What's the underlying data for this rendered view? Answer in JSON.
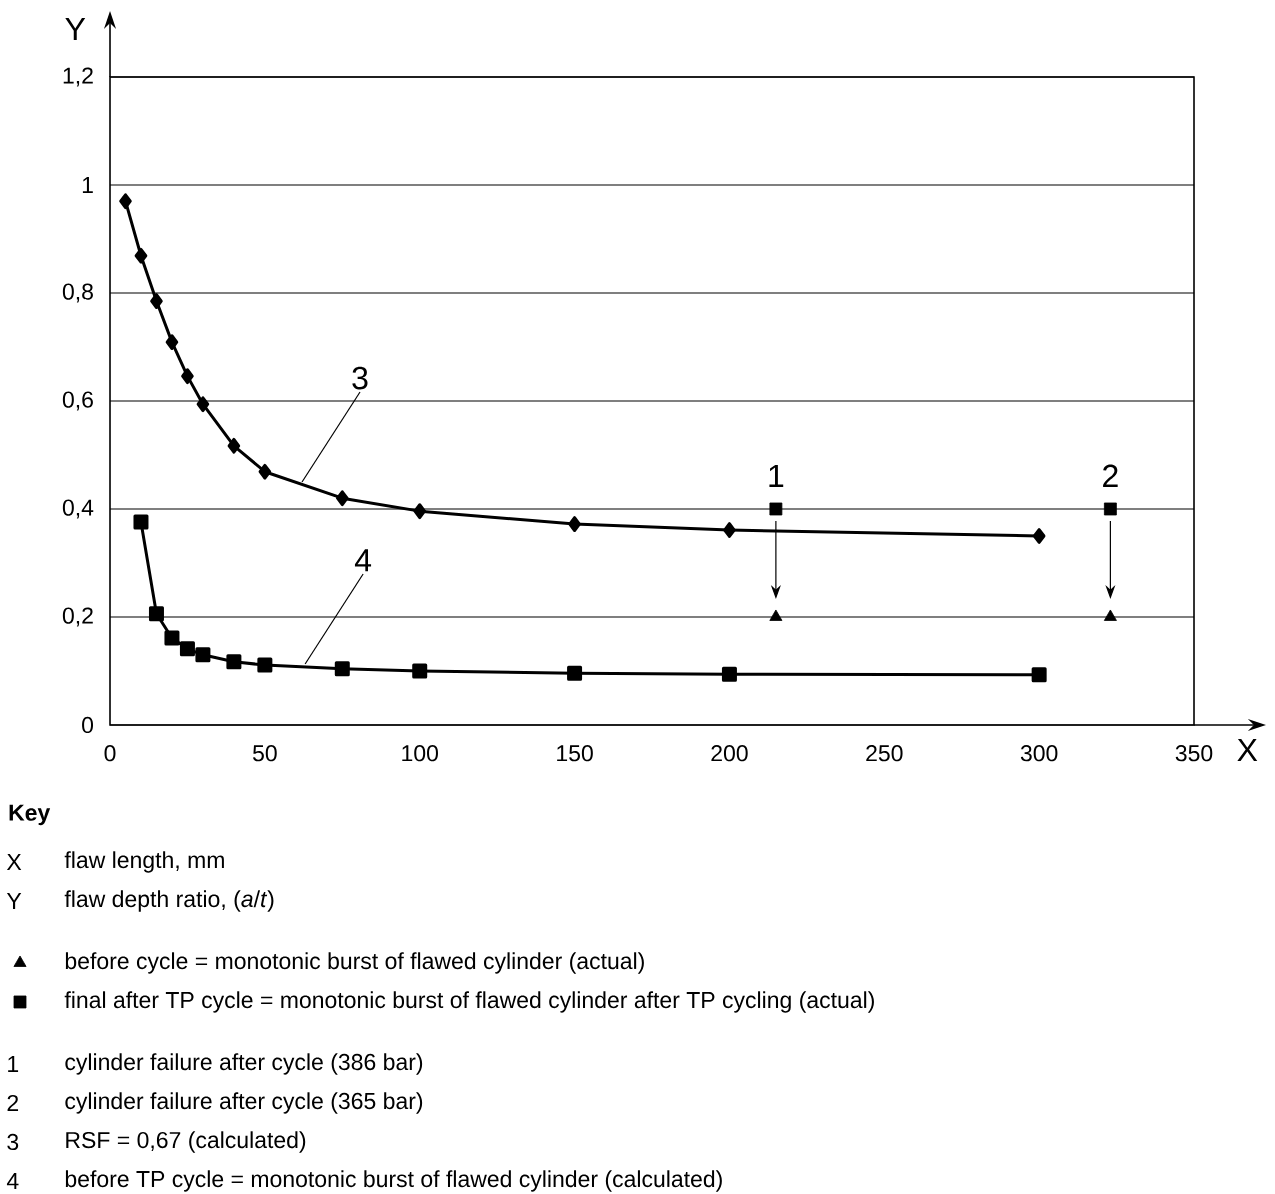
{
  "chart_data": {
    "type": "line",
    "xlabel": "X",
    "ylabel": "Y",
    "xlim": [
      0,
      350
    ],
    "ylim": [
      0,
      1.2
    ],
    "xticks": [
      0,
      50,
      100,
      150,
      200,
      250,
      300,
      350
    ],
    "yticks": [
      0,
      {
        "value": 0.2,
        "label": "0,2"
      },
      {
        "value": 0.4,
        "label": "0,4"
      },
      {
        "value": 0.6,
        "label": "0,6"
      },
      {
        "value": 0.8,
        "label": "0,8"
      },
      1,
      {
        "value": 1.2,
        "label": "1,2"
      }
    ],
    "grid": "y",
    "legend": "bottom",
    "series": [
      {
        "marker": "diamond",
        "color": "#000000",
        "x": [
          5,
          10,
          15,
          20,
          25,
          30,
          40,
          50,
          75,
          100,
          150,
          200,
          300
        ],
        "values": [
          0.97,
          0.869,
          0.785,
          0.709,
          0.646,
          0.594,
          0.517,
          0.469,
          0.42,
          0.396,
          0.372,
          0.361,
          0.35
        ]
      },
      {
        "marker": "square",
        "color": "#000000",
        "x": [
          10,
          15,
          20,
          25,
          30,
          40,
          50,
          75,
          100,
          150,
          200,
          300
        ],
        "values": [
          0.376,
          0.206,
          0.161,
          0.141,
          0.13,
          0.117,
          0.111,
          0.104,
          0.1,
          0.096,
          0.094,
          0.093
        ]
      },
      {
        "type": "scatter",
        "marker": "triangle",
        "color": "#000000",
        "name": "before cycle = monotonic burst of flawed cylinder (actual)",
        "x": [
          215,
          323
        ],
        "values": [
          0.2,
          0.2
        ]
      },
      {
        "type": "scatter",
        "marker": "square",
        "color": "#000000",
        "name": "final after TP cycle = monotonic burst of flawed cylinder after TP cycling (actual)",
        "x": [
          215,
          323
        ],
        "values": [
          0.4,
          0.4
        ]
      }
    ],
    "annotations": [
      {
        "text": "3",
        "x": 62,
        "y": 0.45
      },
      {
        "text": "4",
        "x": 63,
        "y": 0.113
      },
      {
        "text": "1",
        "x": 215,
        "y": 0.4
      },
      {
        "text": "2",
        "x": 323,
        "y": 0.4
      },
      "Key",
      "X",
      "flaw length, mm",
      "Y",
      "flaw depth ratio, (*a*/*t*)",
      "1",
      "cylinder failure after cycle (386 bar)",
      "2",
      "cylinder failure after cycle (365 bar)",
      "3",
      "RSF = 0,67 (calculated)",
      "4",
      "before TP cycle = monotonic burst of flawed cylinder (calculated)"
    ]
  }
}
